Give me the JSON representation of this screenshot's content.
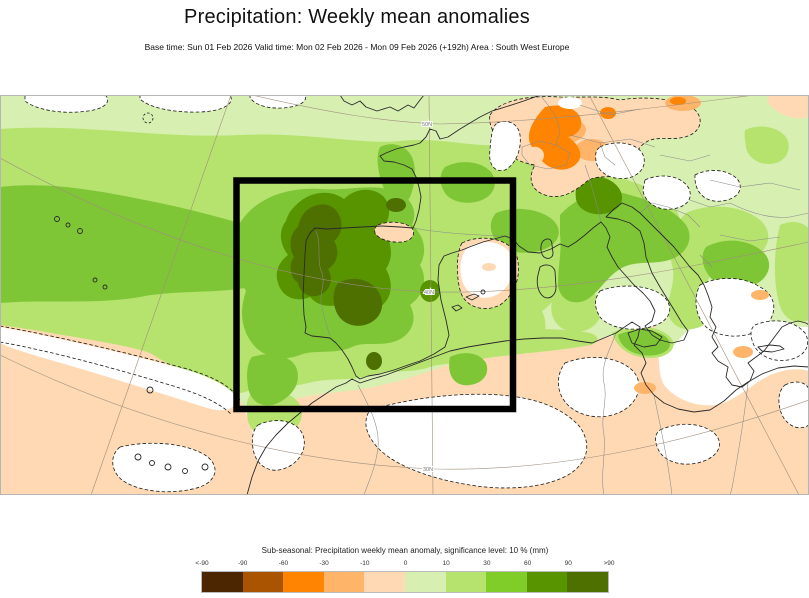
{
  "page": {
    "title": "Precipitation: Weekly mean anomalies",
    "subtitle": "Base time: Sun 01 Feb 2026 Valid time: Mon 02 Feb 2026 - Mon 09 Feb 2026 (+192h) Area : South West Europe"
  },
  "legend": {
    "title": "Sub-seasonal: Precipitation weekly mean anomaly, significance level: 10 % (mm)",
    "ticks": [
      "<-90",
      "-90",
      "-60",
      "-30",
      "-10",
      "0",
      "10",
      "30",
      "60",
      "90",
      ">90"
    ],
    "colors": [
      "#4c2600",
      "#a85400",
      "#fe8401",
      "#feb469",
      "#fed9b3",
      "#d8efb2",
      "#b5e36e",
      "#80cc28",
      "#579400",
      "#4e7000"
    ]
  },
  "map": {
    "graticule_labels": [
      "50N",
      "40N",
      "30N"
    ],
    "box_color": "#000000",
    "region_box": "South West Europe (Iberian Peninsula)"
  },
  "chart_data": {
    "type": "heatmap",
    "subtype": "filled-contour-anomaly-map",
    "title": "Precipitation: Weekly mean anomalies",
    "area": "South West Europe",
    "base_time": "Sun 01 Feb 2026",
    "valid_time": "Mon 02 Feb 2026 - Mon 09 Feb 2026 (+192h)",
    "units": "mm",
    "significance_level_pct": 10,
    "scale_bin_edges": [
      -90,
      -60,
      -30,
      -10,
      0,
      10,
      30,
      60,
      90
    ],
    "scale_colors": [
      "#4c2600",
      "#a85400",
      "#fe8401",
      "#feb469",
      "#fed9b3",
      "#d8efb2",
      "#b5e36e",
      "#80cc28",
      "#579400",
      "#4e7000"
    ],
    "graticule": {
      "parallels": [
        "50N",
        "40N",
        "30N"
      ],
      "labels_on_meridian": true
    },
    "regions": [
      {
        "area": "Portugal and western Spain (inside highlight box)",
        "anomaly_mm": ">90 to 60-90 (strong positive)"
      },
      {
        "area": "Iberian Peninsula overall",
        "anomaly_mm": "30-90 positive"
      },
      {
        "area": "NE Atlantic band toward Azores",
        "anomaly_mm": "30-60 positive"
      },
      {
        "area": "France, western Mediterranean, Italy, Balkans",
        "anomaly_mm": "10-60 positive"
      },
      {
        "area": "Alps / southern Germany",
        "anomaly_mm": "-30 to -60 negative"
      },
      {
        "area": "Valencia coast patch",
        "anomaly_mm": "near 0 / not significant"
      },
      {
        "area": "North Africa and southern margin",
        "anomaly_mm": "-10 to 0 weak negative, patches not significant"
      }
    ]
  }
}
